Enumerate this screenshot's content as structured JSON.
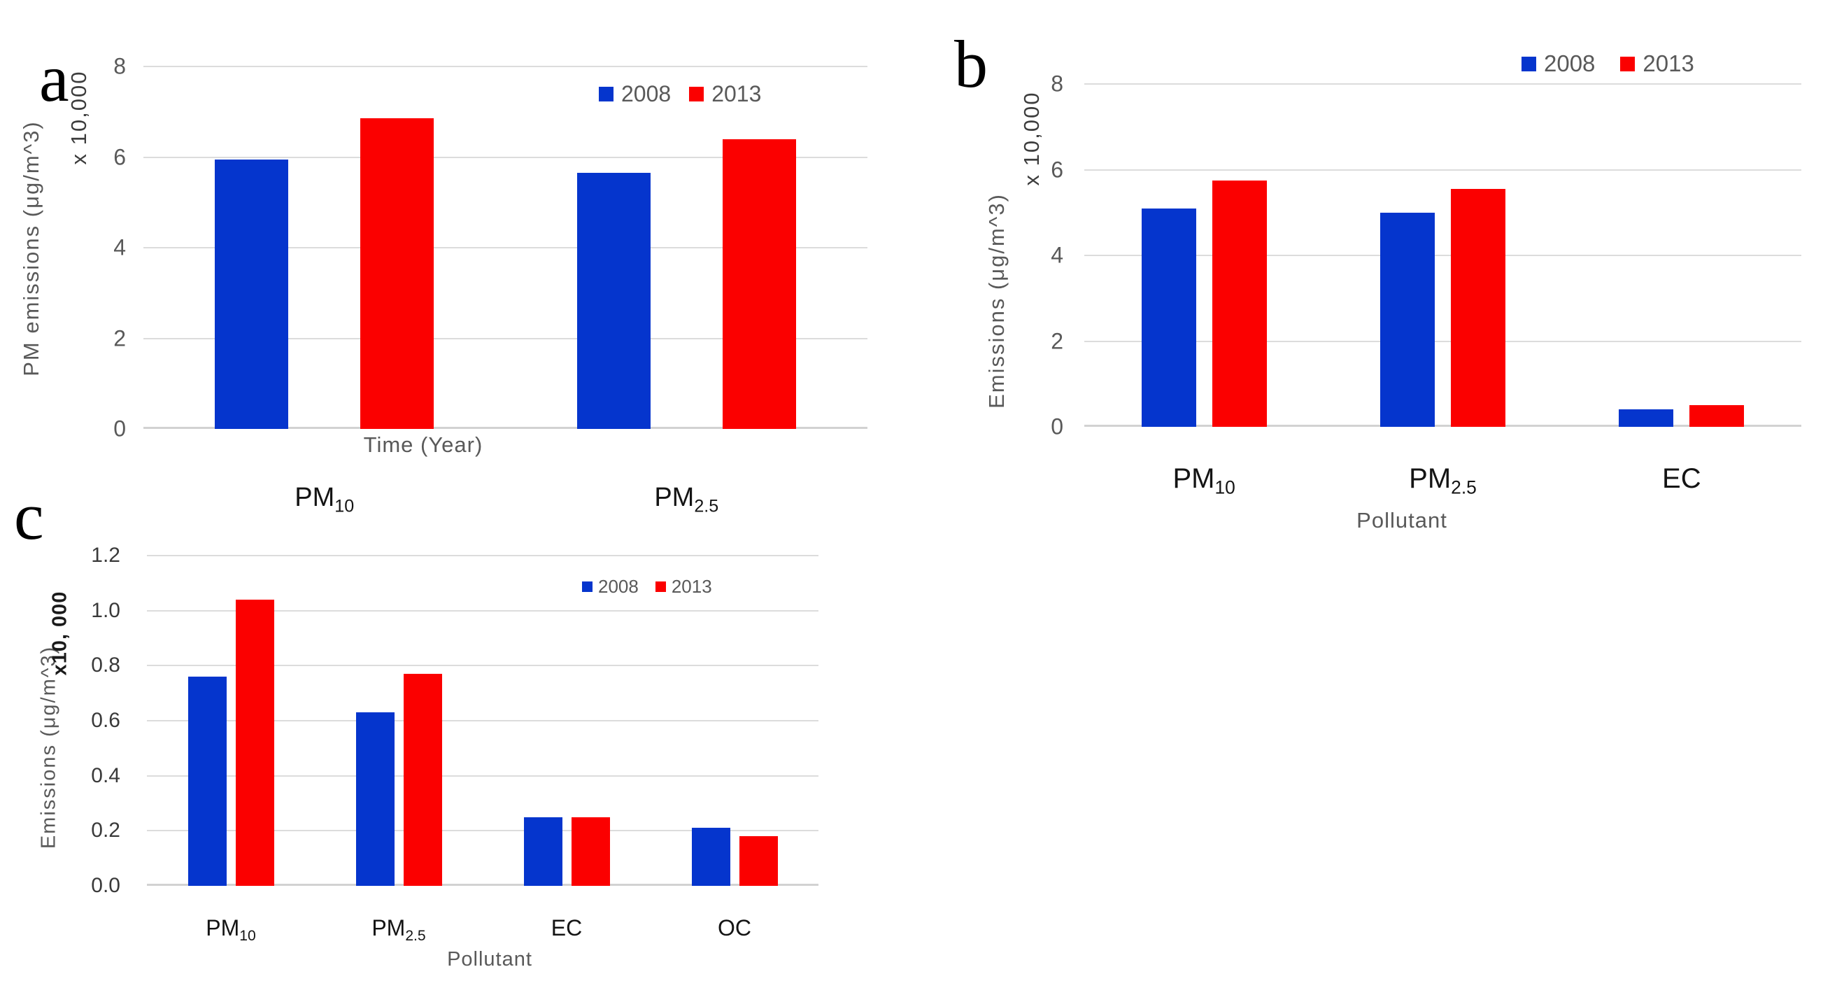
{
  "chart_data": [
    {
      "panel": "a",
      "type": "bar",
      "title": "",
      "ylabel": "PM emissions (μg/m^3)",
      "y_scale_note": "x 10,000",
      "xlabel": "Time (Year)",
      "ylim": [
        0,
        8
      ],
      "yticks": [
        0,
        2,
        4,
        6,
        8
      ],
      "ytick_labels": [
        "0",
        "2",
        "4",
        "6",
        "8"
      ],
      "grid": true,
      "legend_position": "inside-top-right",
      "categories": [
        {
          "base": "PM",
          "sub": "10"
        },
        {
          "base": "PM",
          "sub": "2.5"
        }
      ],
      "series": [
        {
          "name": "2008",
          "color": "#0535CD",
          "values": [
            5.95,
            5.65
          ]
        },
        {
          "name": "2013",
          "color": "#FB0000",
          "values": [
            6.85,
            6.4
          ]
        }
      ]
    },
    {
      "panel": "b",
      "type": "bar",
      "title": "",
      "ylabel": "Emissions (μg/m^3)",
      "y_scale_note": "x 10,000",
      "xlabel": "Pollutant",
      "ylim": [
        0,
        8
      ],
      "yticks": [
        0,
        2,
        4,
        6,
        8
      ],
      "ytick_labels": [
        "0",
        "2",
        "4",
        "6",
        "8"
      ],
      "grid": true,
      "legend_position": "above-top-right",
      "categories": [
        {
          "base": "PM",
          "sub": "10"
        },
        {
          "base": "PM",
          "sub": "2.5"
        },
        {
          "base": "EC",
          "sub": ""
        }
      ],
      "series": [
        {
          "name": "2008",
          "color": "#0535CD",
          "values": [
            5.1,
            5.0,
            0.4
          ]
        },
        {
          "name": "2013",
          "color": "#FB0000",
          "values": [
            5.75,
            5.55,
            0.5
          ]
        }
      ]
    },
    {
      "panel": "c",
      "type": "bar",
      "title": "",
      "ylabel": "Emissions (μg/m^3)",
      "y_scale_note": "x10, 000",
      "xlabel": "Pollutant",
      "ylim": [
        0,
        1.2
      ],
      "yticks": [
        0,
        0.2,
        0.4,
        0.6,
        0.8,
        1.0,
        1.2
      ],
      "ytick_labels": [
        "0.0",
        "0.2",
        "0.4",
        "0.6",
        "0.8",
        "1.0",
        "1.2"
      ],
      "grid": true,
      "legend_position": "inside-top-right",
      "categories": [
        {
          "base": "PM",
          "sub": "10"
        },
        {
          "base": "PM",
          "sub": "2.5"
        },
        {
          "base": "EC",
          "sub": ""
        },
        {
          "base": "OC",
          "sub": ""
        }
      ],
      "series": [
        {
          "name": "2008",
          "color": "#0535CD",
          "values": [
            0.76,
            0.63,
            0.25,
            0.21
          ]
        },
        {
          "name": "2013",
          "color": "#FB0000",
          "values": [
            1.04,
            0.77,
            0.25,
            0.18
          ]
        }
      ]
    }
  ]
}
